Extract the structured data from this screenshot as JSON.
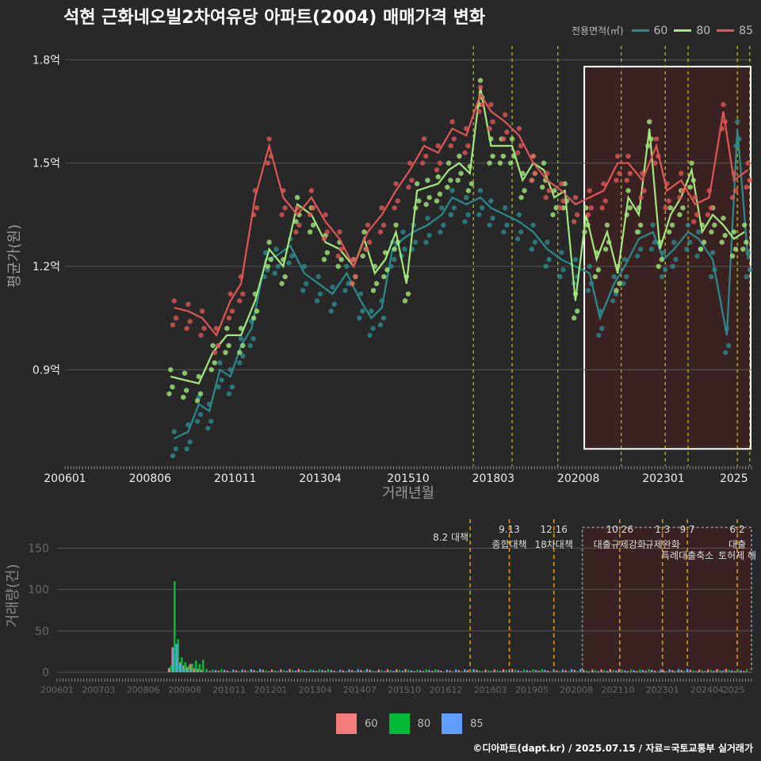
{
  "title": "석현 근화네오빌2차여유당 아파트(2004) 매매가격 변화",
  "credit": "©디아파트(dapt.kr) / 2025.07.15 / 자료=국토교통부 실거래가",
  "colors": {
    "s60": "#2b8a8c",
    "s80": "#a2e87a",
    "s85": "#e05555",
    "vol60": "#f47b7b",
    "vol80": "#00ba38",
    "vol85": "#619cff",
    "vline": "#c8c80a",
    "policy": "#e0a000",
    "box": "#3a2222",
    "grid": "#555555",
    "bg": "#282828"
  },
  "chart_data": [
    {
      "type": "line",
      "legend_title": "전용면적(㎡)",
      "legend_position": "top-right",
      "xlabel": "거래년월",
      "ylabel": "평균가(원)",
      "x_ticks": [
        "200601",
        "200806",
        "201011",
        "201304",
        "201510",
        "201803",
        "202008",
        "202301",
        "2025"
      ],
      "y_ticks": [
        {
          "v": 0.9,
          "label": "0.9억"
        },
        {
          "v": 1.2,
          "label": "1.2억"
        },
        {
          "v": 1.5,
          "label": "1.5억"
        },
        {
          "v": 1.8,
          "label": "1.8억"
        }
      ],
      "ylim": [
        0.62,
        1.84
      ],
      "xlim": [
        2006.0,
        2025.5
      ],
      "highlight_range": [
        2020.75,
        2025.5
      ],
      "vlines": [
        2017.6,
        2018.7,
        2020.0,
        2021.8,
        2023.05,
        2023.7,
        2025.1,
        2025.45
      ],
      "series": [
        {
          "name": "60",
          "x": [
            2009.1,
            2009.5,
            2009.8,
            2010.1,
            2010.4,
            2010.7,
            2011.0,
            2011.3,
            2011.7,
            2012.0,
            2012.4,
            2012.8,
            2013.2,
            2013.6,
            2014.0,
            2014.4,
            2014.7,
            2015.0,
            2015.3,
            2015.6,
            2015.9,
            2016.3,
            2016.7,
            2017.0,
            2017.4,
            2017.8,
            2018.1,
            2018.5,
            2018.9,
            2019.3,
            2019.7,
            2020.1,
            2020.5,
            2020.9,
            2021.2,
            2021.6,
            2021.9,
            2022.3,
            2022.7,
            2023.0,
            2023.3,
            2023.7,
            2024.0,
            2024.4,
            2024.8,
            2025.1,
            2025.4
          ],
          "y": [
            0.7,
            0.72,
            0.8,
            0.78,
            0.9,
            0.88,
            0.97,
            1.02,
            1.22,
            1.23,
            1.26,
            1.18,
            1.15,
            1.12,
            1.18,
            1.1,
            1.05,
            1.08,
            1.25,
            1.28,
            1.3,
            1.32,
            1.35,
            1.4,
            1.38,
            1.4,
            1.37,
            1.35,
            1.33,
            1.3,
            1.25,
            1.22,
            1.2,
            1.18,
            1.05,
            1.15,
            1.2,
            1.28,
            1.3,
            1.22,
            1.25,
            1.3,
            1.28,
            1.22,
            1.0,
            1.6,
            1.22
          ]
        },
        {
          "name": "80",
          "x": [
            2009.0,
            2009.4,
            2009.8,
            2010.2,
            2010.6,
            2011.0,
            2011.4,
            2011.8,
            2012.2,
            2012.6,
            2013.0,
            2013.4,
            2013.8,
            2014.2,
            2014.5,
            2014.8,
            2015.1,
            2015.4,
            2015.7,
            2016.0,
            2016.3,
            2016.6,
            2016.9,
            2017.2,
            2017.5,
            2017.8,
            2018.1,
            2018.4,
            2018.7,
            2019.0,
            2019.3,
            2019.6,
            2019.9,
            2020.2,
            2020.5,
            2020.8,
            2021.1,
            2021.4,
            2021.7,
            2022.0,
            2022.3,
            2022.6,
            2022.9,
            2023.2,
            2023.5,
            2023.8,
            2024.1,
            2024.4,
            2024.7,
            2025.0,
            2025.3
          ],
          "y": [
            0.88,
            0.87,
            0.86,
            0.95,
            1.0,
            1.0,
            1.1,
            1.25,
            1.2,
            1.38,
            1.35,
            1.27,
            1.25,
            1.2,
            1.28,
            1.18,
            1.22,
            1.3,
            1.15,
            1.42,
            1.43,
            1.44,
            1.48,
            1.5,
            1.47,
            1.72,
            1.55,
            1.55,
            1.55,
            1.45,
            1.5,
            1.48,
            1.4,
            1.42,
            1.1,
            1.35,
            1.22,
            1.3,
            1.18,
            1.4,
            1.35,
            1.6,
            1.25,
            1.35,
            1.4,
            1.48,
            1.3,
            1.35,
            1.32,
            1.28,
            1.3
          ]
        },
        {
          "name": "85",
          "x": [
            2009.1,
            2009.5,
            2009.9,
            2010.3,
            2010.7,
            2011.0,
            2011.4,
            2011.8,
            2012.2,
            2012.6,
            2013.0,
            2013.4,
            2013.8,
            2014.2,
            2014.6,
            2015.0,
            2015.4,
            2015.8,
            2016.2,
            2016.6,
            2017.0,
            2017.4,
            2017.8,
            2018.1,
            2018.5,
            2018.9,
            2019.3,
            2019.7,
            2020.1,
            2020.5,
            2020.9,
            2021.3,
            2021.7,
            2022.0,
            2022.4,
            2022.8,
            2023.1,
            2023.5,
            2023.9,
            2024.3,
            2024.7,
            2025.0,
            2025.4
          ],
          "y": [
            1.08,
            1.07,
            1.05,
            1.0,
            1.1,
            1.15,
            1.4,
            1.55,
            1.4,
            1.35,
            1.4,
            1.33,
            1.28,
            1.2,
            1.3,
            1.35,
            1.42,
            1.48,
            1.55,
            1.53,
            1.6,
            1.58,
            1.7,
            1.65,
            1.62,
            1.58,
            1.5,
            1.45,
            1.42,
            1.38,
            1.4,
            1.42,
            1.5,
            1.5,
            1.45,
            1.55,
            1.42,
            1.45,
            1.38,
            1.4,
            1.65,
            1.45,
            1.48
          ]
        }
      ]
    },
    {
      "type": "bar",
      "ylabel": "거래량(건)",
      "x_ticks": [
        "200601",
        "200703",
        "200806",
        "200908",
        "201011",
        "201201",
        "201304",
        "201407",
        "201510",
        "201612",
        "201803",
        "201905",
        "202008",
        "202110",
        "202301",
        "202404",
        "2025"
      ],
      "y_ticks": [
        0,
        50,
        100,
        150
      ],
      "ylim": [
        0,
        185
      ],
      "xlim": [
        2006.0,
        2025.5
      ],
      "highlight_range": [
        2020.75,
        2025.5
      ],
      "policy_lines": [
        {
          "x": 2017.6,
          "label": "8.2 대책",
          "label2": ""
        },
        {
          "x": 2018.7,
          "label": "9.13",
          "label2": "종합대책"
        },
        {
          "x": 2019.95,
          "label": "12.16",
          "label2": "18차대책"
        },
        {
          "x": 2021.8,
          "label": "10.26",
          "label2": "대출규제강화"
        },
        {
          "x": 2023.0,
          "label": "1.3",
          "label2": "규제완화"
        },
        {
          "x": 2023.7,
          "label": "9.7",
          "label2": "특례대출축소"
        },
        {
          "x": 2025.1,
          "label": "6.2",
          "label2": "대출"
        }
      ],
      "policy_label_extra": "토허제 해",
      "series": [
        {
          "name": "60",
          "x": [
            2009.2,
            2009.3,
            2009.4,
            2009.5,
            2009.6,
            2009.7,
            2009.8,
            2009.9,
            2010.0,
            2010.1
          ],
          "values": [
            5,
            30,
            20,
            12,
            8,
            6,
            10,
            5,
            4,
            3
          ]
        },
        {
          "name": "80",
          "x": [
            2009.2,
            2009.3,
            2009.4,
            2009.5,
            2009.6,
            2009.7,
            2009.8,
            2009.9,
            2010.0,
            2010.1,
            2010.2
          ],
          "values": [
            8,
            110,
            40,
            18,
            12,
            8,
            10,
            14,
            10,
            15,
            4
          ]
        },
        {
          "name": "85",
          "x": [
            2009.2,
            2009.3,
            2009.4,
            2009.5,
            2009.6,
            2009.7
          ],
          "values": [
            30,
            34,
            10,
            4,
            3,
            3
          ]
        }
      ]
    }
  ]
}
